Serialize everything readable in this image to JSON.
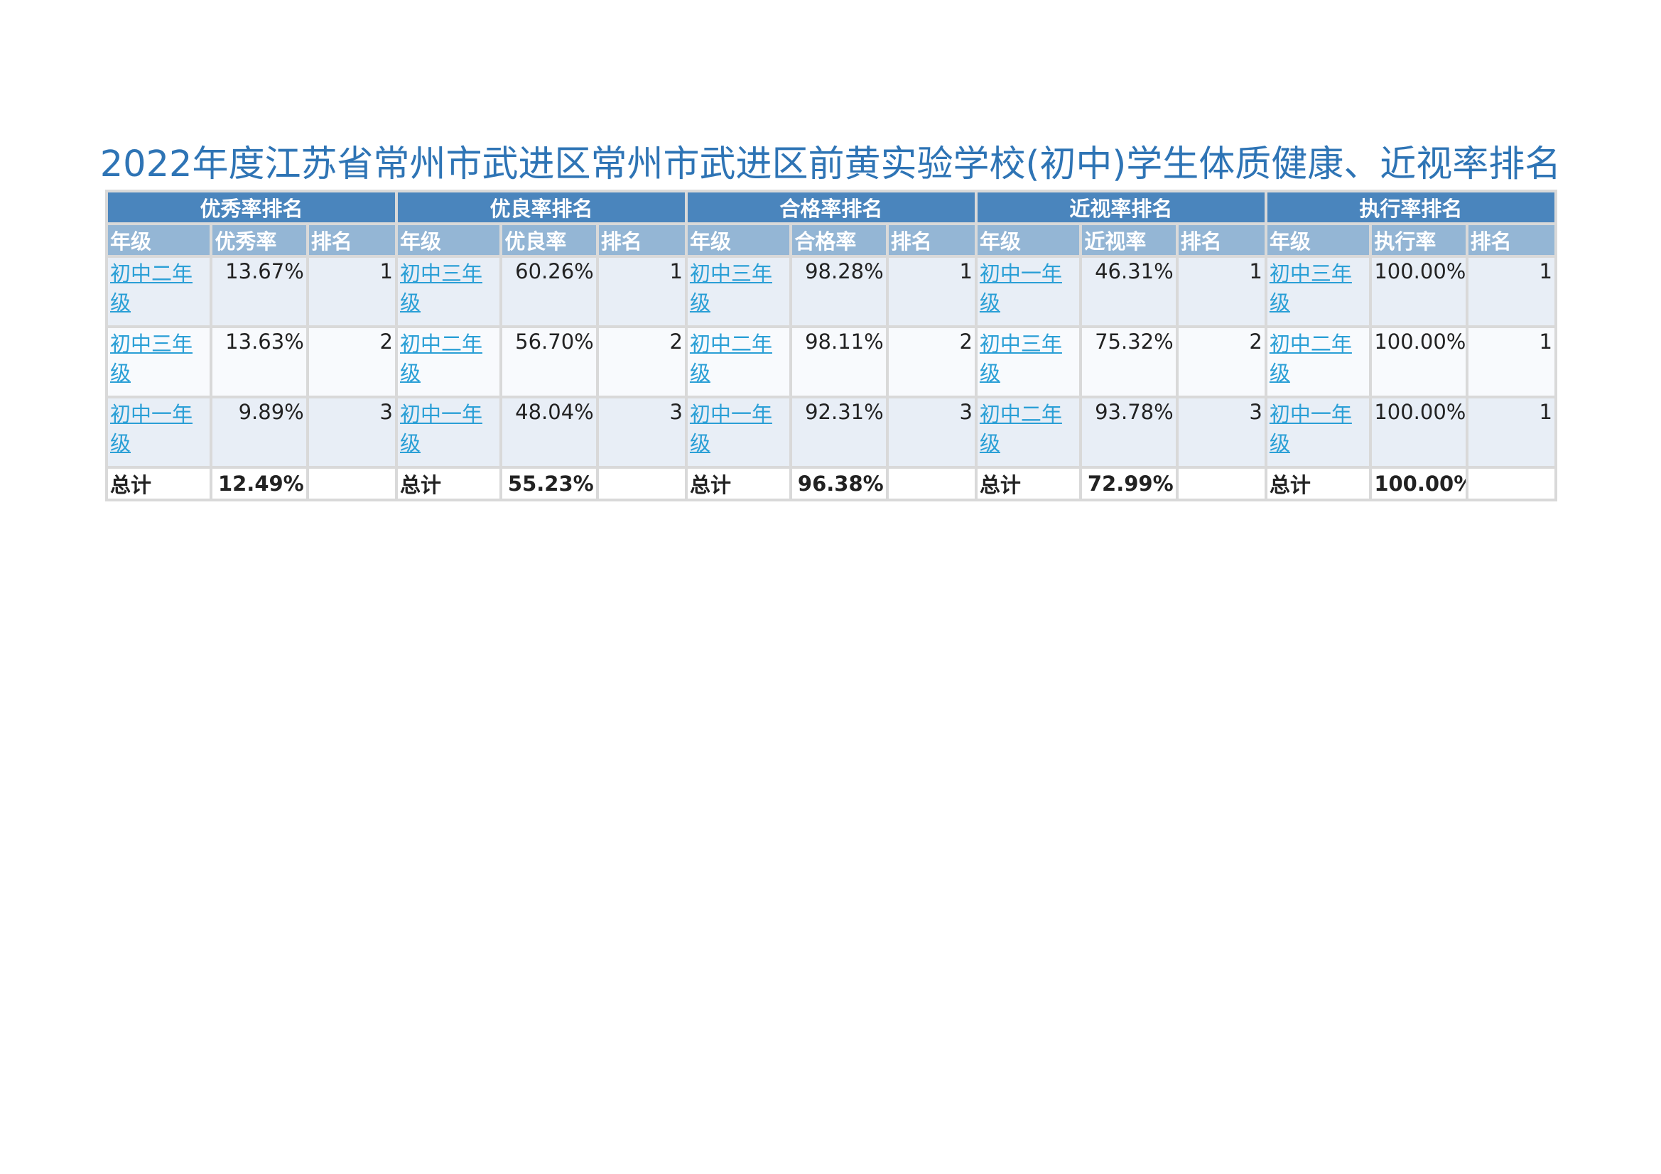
{
  "title": "2022年度江苏省常州市武进区常州市武进区前黄实验学校(初中)学生体质健康、近视率排名",
  "groups": [
    "优秀率排名",
    "优良率排名",
    "合格率排名",
    "近视率排名",
    "执行率排名"
  ],
  "subheaders": [
    [
      "年级",
      "优秀率",
      "排名"
    ],
    [
      "年级",
      "优良率",
      "排名"
    ],
    [
      "年级",
      "合格率",
      "排名"
    ],
    [
      "年级",
      "近视率",
      "排名"
    ],
    [
      "年级",
      "执行率",
      "排名"
    ]
  ],
  "rows": [
    [
      {
        "grade": "初中二年级",
        "rate": "13.67%",
        "rank": "1"
      },
      {
        "grade": "初中三年级",
        "rate": "60.26%",
        "rank": "1"
      },
      {
        "grade": "初中三年级",
        "rate": "98.28%",
        "rank": "1"
      },
      {
        "grade": "初中一年级",
        "rate": "46.31%",
        "rank": "1"
      },
      {
        "grade": "初中三年级",
        "rate": "100.00%",
        "rank": "1"
      }
    ],
    [
      {
        "grade": "初中三年级",
        "rate": "13.63%",
        "rank": "2"
      },
      {
        "grade": "初中二年级",
        "rate": "56.70%",
        "rank": "2"
      },
      {
        "grade": "初中二年级",
        "rate": "98.11%",
        "rank": "2"
      },
      {
        "grade": "初中三年级",
        "rate": "75.32%",
        "rank": "2"
      },
      {
        "grade": "初中二年级",
        "rate": "100.00%",
        "rank": "1"
      }
    ],
    [
      {
        "grade": "初中一年级",
        "rate": "9.89%",
        "rank": "3"
      },
      {
        "grade": "初中一年级",
        "rate": "48.04%",
        "rank": "3"
      },
      {
        "grade": "初中一年级",
        "rate": "92.31%",
        "rank": "3"
      },
      {
        "grade": "初中二年级",
        "rate": "93.78%",
        "rank": "3"
      },
      {
        "grade": "初中一年级",
        "rate": "100.00%",
        "rank": "1"
      }
    ]
  ],
  "totals": [
    {
      "label": "总计",
      "rate": "12.49%"
    },
    {
      "label": "总计",
      "rate": "55.23%"
    },
    {
      "label": "总计",
      "rate": "96.38%"
    },
    {
      "label": "总计",
      "rate": "72.99%"
    },
    {
      "label": "总计",
      "rate": "100.00%"
    }
  ]
}
